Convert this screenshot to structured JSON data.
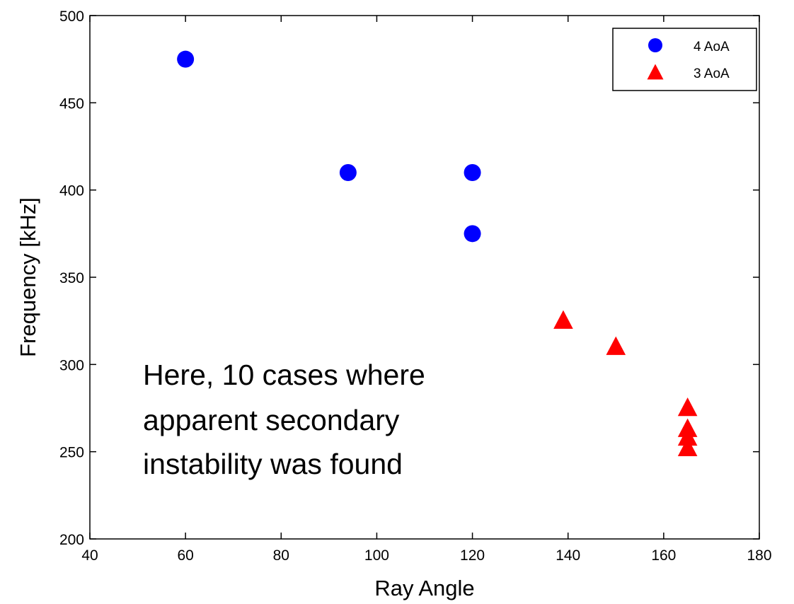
{
  "chart_data": {
    "type": "scatter",
    "title": "",
    "xlabel": "Ray Angle",
    "ylabel": "Frequency  [kHz]",
    "xlim": [
      40,
      180
    ],
    "ylim": [
      200,
      500
    ],
    "xticks": [
      40,
      60,
      80,
      100,
      120,
      140,
      160,
      180
    ],
    "yticks": [
      200,
      250,
      300,
      350,
      400,
      450,
      500
    ],
    "grid": false,
    "legend_position": "top-right",
    "series": [
      {
        "name": "4 AoA",
        "marker": "circle",
        "color": "#0000ff",
        "points": [
          {
            "x": 60,
            "y": 475
          },
          {
            "x": 94,
            "y": 410
          },
          {
            "x": 120,
            "y": 410
          },
          {
            "x": 120,
            "y": 375
          }
        ]
      },
      {
        "name": "3 AoA",
        "marker": "triangle",
        "color": "#ff0000",
        "points": [
          {
            "x": 139,
            "y": 325
          },
          {
            "x": 150,
            "y": 310
          },
          {
            "x": 165,
            "y": 275
          },
          {
            "x": 165,
            "y": 263
          },
          {
            "x": 165,
            "y": 258
          },
          {
            "x": 165,
            "y": 252
          }
        ]
      }
    ],
    "annotation": {
      "lines": [
        "Here, 10 cases where",
        "apparent secondary",
        "instability was found"
      ]
    }
  }
}
